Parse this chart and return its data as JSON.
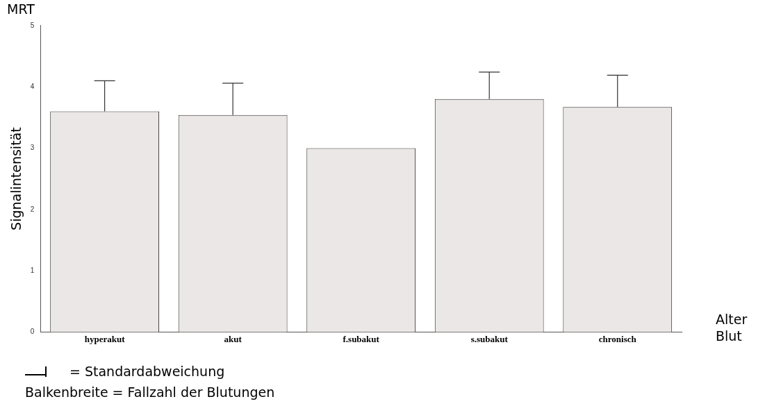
{
  "chart_data": {
    "type": "bar",
    "title": "MRT",
    "ylabel": "Signalintensität",
    "xlabel": "Alter Blut",
    "categories": [
      "hyperakut",
      "akut",
      "f.subakut",
      "s.subakut",
      "chronisch"
    ],
    "values": [
      3.6,
      3.54,
      3.0,
      3.8,
      3.67
    ],
    "errors": [
      [
        3.6,
        4.1
      ],
      [
        3.54,
        4.06
      ],
      null,
      [
        3.8,
        4.24
      ],
      [
        3.67,
        4.19
      ]
    ],
    "color": "#ebe7e6",
    "ylim": [
      0,
      5
    ],
    "yticks": [
      0,
      1,
      2,
      3,
      4,
      5
    ],
    "grid": false,
    "legend": false,
    "annotations": [
      "= Standardabweichung",
      "Balkenbreite = Fallzahl der Blutungen"
    ]
  }
}
